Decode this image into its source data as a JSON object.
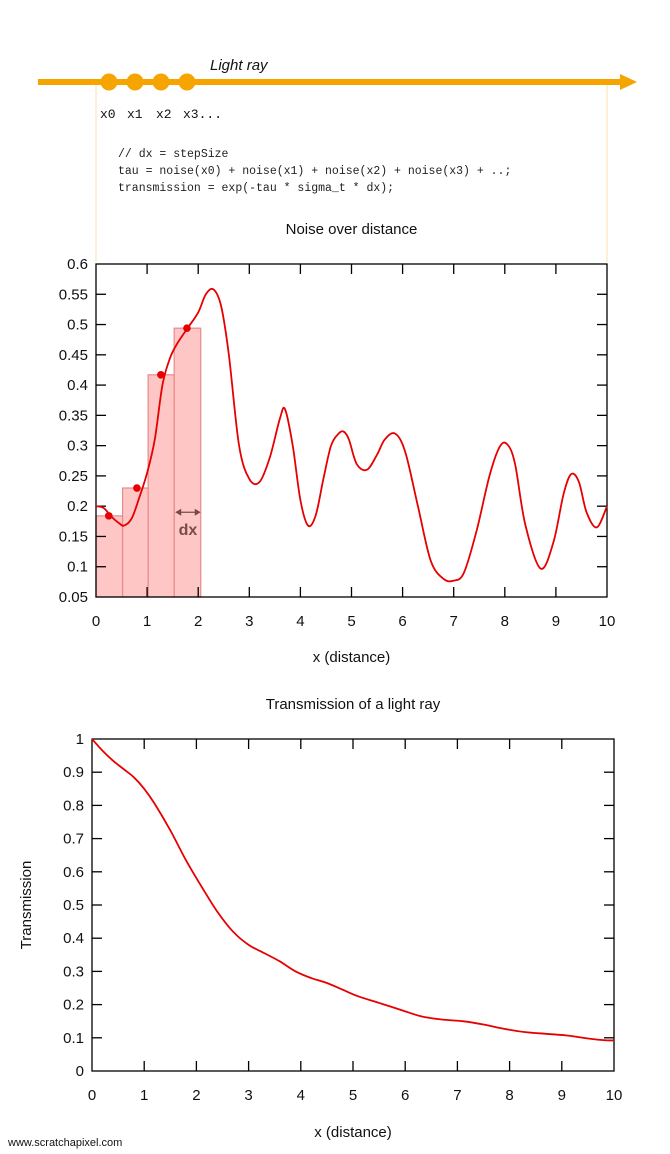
{
  "ray": {
    "label": "Light ray",
    "sample_labels": [
      "x0",
      "x1",
      "x2",
      "x3..."
    ],
    "color": "#f5a400",
    "guide_color": "#fde6b8"
  },
  "code": {
    "lines": [
      "// dx = stepSize",
      "tau = noise(x0) + noise(x1) + noise(x2) + noise(x3) + ..;",
      "transmission = exp(-tau * sigma_t * dx);"
    ]
  },
  "footer": {
    "credit": "www.scratchapixel.com"
  },
  "chart_data": [
    {
      "type": "line",
      "title": "Noise over distance",
      "xlabel": "x (distance)",
      "ylabel": "",
      "xlim": [
        0,
        10
      ],
      "ylim": [
        0.05,
        0.6
      ],
      "xticks": [
        0,
        1,
        2,
        3,
        4,
        5,
        6,
        7,
        8,
        9,
        10
      ],
      "xtick_labels": [
        "0",
        "1",
        "2",
        "3",
        "4",
        "5",
        "6",
        "7",
        "8",
        "9",
        "10"
      ],
      "yticks": [
        0.05,
        0.1,
        0.15,
        0.2,
        0.25,
        0.3,
        0.35,
        0.4,
        0.45,
        0.5,
        0.55,
        0.6
      ],
      "ytick_labels": [
        "0.05",
        "0.1",
        "0.15",
        "0.2",
        "0.25",
        "0.3",
        "0.35",
        "0.4",
        "0.45",
        "0.5",
        "0.55",
        "0.6"
      ],
      "grid": false,
      "line_color": "#e60000",
      "series": [
        {
          "x": [
            0,
            0.15,
            0.3,
            0.45,
            0.55,
            0.7,
            0.85,
            1.0,
            1.15,
            1.3,
            1.45,
            1.6,
            1.8,
            2.0,
            2.15,
            2.3,
            2.45,
            2.6,
            2.8,
            3.0,
            3.2,
            3.4,
            3.6,
            3.7,
            3.85,
            4.0,
            4.15,
            4.3,
            4.45,
            4.6,
            4.75,
            4.85,
            4.95,
            5.1,
            5.3,
            5.5,
            5.65,
            5.85,
            6.05,
            6.3,
            6.55,
            6.8,
            7.0,
            7.2,
            7.45,
            7.7,
            7.9,
            8.05,
            8.2,
            8.4,
            8.7,
            8.95,
            9.15,
            9.3,
            9.45,
            9.6,
            9.8,
            10.0
          ],
          "y": [
            0.2,
            0.197,
            0.183,
            0.172,
            0.168,
            0.18,
            0.215,
            0.255,
            0.31,
            0.4,
            0.445,
            0.47,
            0.495,
            0.52,
            0.55,
            0.558,
            0.53,
            0.45,
            0.3,
            0.245,
            0.24,
            0.28,
            0.345,
            0.36,
            0.3,
            0.21,
            0.168,
            0.185,
            0.245,
            0.3,
            0.32,
            0.323,
            0.31,
            0.27,
            0.26,
            0.285,
            0.31,
            0.32,
            0.29,
            0.2,
            0.11,
            0.08,
            0.077,
            0.09,
            0.16,
            0.25,
            0.298,
            0.302,
            0.27,
            0.17,
            0.097,
            0.14,
            0.22,
            0.253,
            0.24,
            0.19,
            0.165,
            0.2
          ]
        }
      ],
      "samples": {
        "x": [
          0.25,
          0.8,
          1.27,
          1.78
        ],
        "y": [
          0.184,
          0.23,
          0.417,
          0.494
        ],
        "color": "#e60000"
      },
      "step_bars": {
        "x0": [
          0,
          0.52,
          1.02,
          1.53
        ],
        "x1": [
          0.52,
          1.02,
          1.53,
          2.05
        ],
        "height": [
          0.184,
          0.23,
          0.417,
          0.494
        ],
        "fill": "#ffb3b3",
        "stroke": "#e88a8a"
      },
      "annotation": {
        "text": "dx",
        "x_from": 1.55,
        "x_to": 2.05,
        "y": 0.19,
        "color": "#7a4a4a"
      }
    },
    {
      "type": "line",
      "title": "Transmission of a light ray",
      "xlabel": "x (distance)",
      "ylabel": "Transmission",
      "xlim": [
        0,
        10
      ],
      "ylim": [
        0,
        1
      ],
      "xticks": [
        0,
        1,
        2,
        3,
        4,
        5,
        6,
        7,
        8,
        9,
        10
      ],
      "xtick_labels": [
        "0",
        "1",
        "2",
        "3",
        "4",
        "5",
        "6",
        "7",
        "8",
        "9",
        "10"
      ],
      "yticks": [
        0,
        0.1,
        0.2,
        0.3,
        0.4,
        0.5,
        0.6,
        0.7,
        0.8,
        0.9,
        1
      ],
      "ytick_labels": [
        "0",
        "0.1",
        "0.2",
        "0.3",
        "0.4",
        "0.5",
        "0.6",
        "0.7",
        "0.8",
        "0.9",
        "1"
      ],
      "grid": false,
      "line_color": "#e60000",
      "series": [
        {
          "x": [
            0,
            0.2,
            0.4,
            0.6,
            0.8,
            1.0,
            1.2,
            1.5,
            1.8,
            2.1,
            2.4,
            2.7,
            3.0,
            3.3,
            3.6,
            3.9,
            4.2,
            4.5,
            4.8,
            5.1,
            5.5,
            5.9,
            6.3,
            6.7,
            7.1,
            7.5,
            7.9,
            8.3,
            8.7,
            9.1,
            9.5,
            9.8,
            10.0
          ],
          "y": [
            1.0,
            0.965,
            0.935,
            0.91,
            0.885,
            0.85,
            0.805,
            0.725,
            0.635,
            0.555,
            0.48,
            0.42,
            0.38,
            0.355,
            0.33,
            0.3,
            0.28,
            0.265,
            0.245,
            0.225,
            0.205,
            0.185,
            0.165,
            0.155,
            0.15,
            0.14,
            0.127,
            0.117,
            0.112,
            0.107,
            0.098,
            0.093,
            0.092
          ]
        }
      ]
    }
  ]
}
